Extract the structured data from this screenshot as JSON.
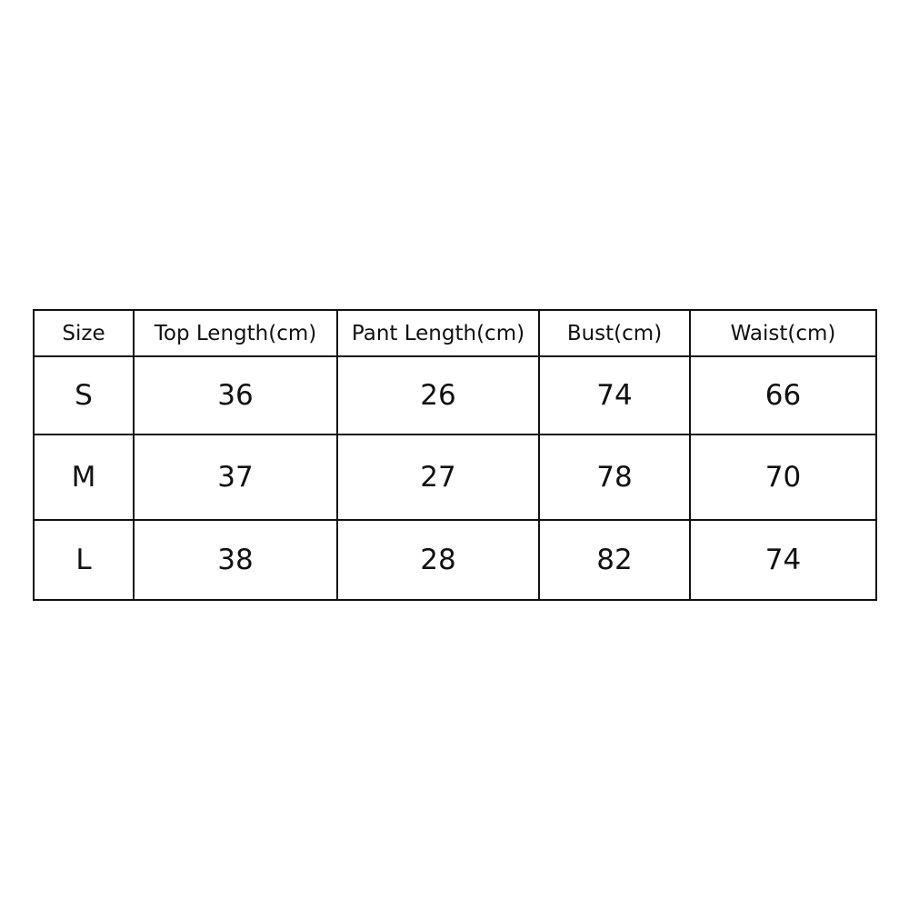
{
  "size_chart": {
    "headers": [
      "Size",
      "Top Length(cm)",
      "Pant Length(cm)",
      "Bust(cm)",
      "Waist(cm)"
    ],
    "rows": [
      [
        "S",
        "36",
        "26",
        "74",
        "66"
      ],
      [
        "M",
        "37",
        "27",
        "78",
        "70"
      ],
      [
        "L",
        "38",
        "28",
        "82",
        "74"
      ]
    ]
  }
}
